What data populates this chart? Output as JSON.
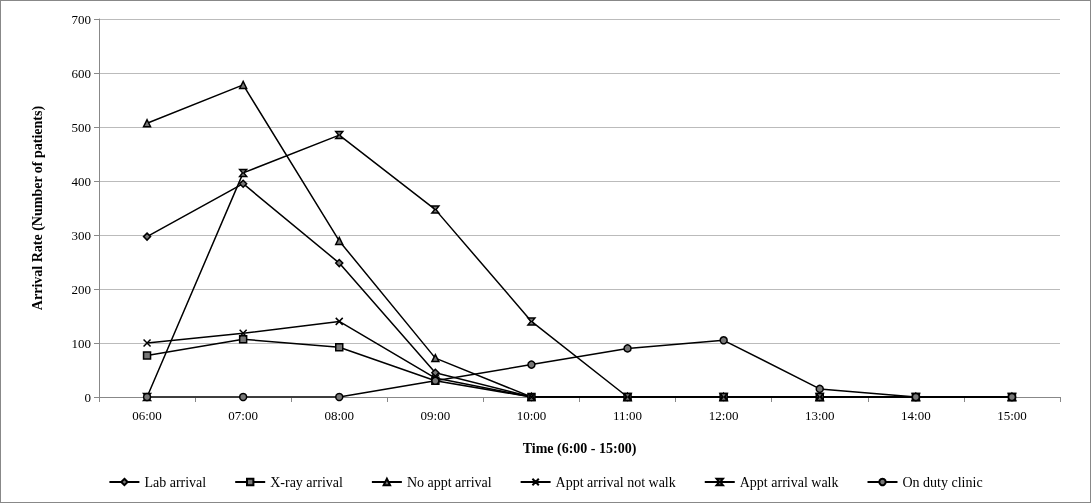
{
  "chart_data": {
    "type": "line",
    "xlabel": "Time (6:00 - 15:00)",
    "ylabel": "Arrival Rate (Number of patients)",
    "categories": [
      "06:00",
      "07:00",
      "08:00",
      "09:00",
      "10:00",
      "11:00",
      "12:00",
      "13:00",
      "14:00",
      "15:00"
    ],
    "ylim": [
      0,
      700
    ],
    "yticks": [
      0,
      100,
      200,
      300,
      400,
      500,
      600,
      700
    ],
    "grid": "y",
    "legend": "bottom",
    "line_style": "solid",
    "series": [
      {
        "name": "Lab arrival",
        "color": "#000000",
        "marker": "diamond",
        "values": [
          297,
          395,
          248,
          45,
          0,
          0,
          0,
          0,
          0,
          0
        ]
      },
      {
        "name": "X-ray arrival",
        "color": "#000000",
        "marker": "square",
        "values": [
          77,
          107,
          92,
          30,
          0,
          0,
          0,
          0,
          0,
          0
        ]
      },
      {
        "name": "No appt arrival",
        "color": "#000000",
        "marker": "triangle",
        "values": [
          507,
          578,
          289,
          72,
          0,
          0,
          0,
          0,
          0,
          0
        ]
      },
      {
        "name": "Appt arrival not walk",
        "color": "#000000",
        "marker": "cross",
        "values": [
          100,
          118,
          140,
          35,
          0,
          0,
          0,
          0,
          0,
          0
        ]
      },
      {
        "name": "Appt arrival walk",
        "color": "#000000",
        "marker": "star",
        "values": [
          0,
          415,
          485,
          347,
          140,
          0,
          0,
          0,
          0,
          0
        ]
      },
      {
        "name": "On duty clinic",
        "color": "#000000",
        "marker": "circle",
        "values": [
          0,
          0,
          0,
          30,
          60,
          90,
          105,
          15,
          0,
          0
        ]
      }
    ]
  }
}
